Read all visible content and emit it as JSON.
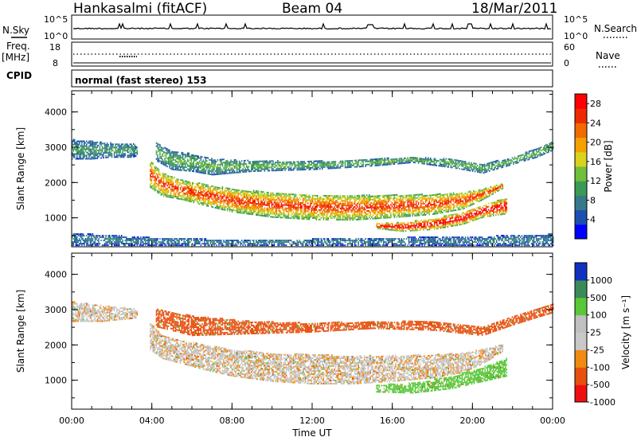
{
  "header": {
    "station": "Hankasalmi (fitACF)",
    "beam": "Beam 04",
    "date": "18/Mar/2011"
  },
  "top_panels": {
    "nsky_label": "N.Sky",
    "nsky_ticks": [
      "10^5",
      "10^0"
    ],
    "nsearch_label": "N.Search",
    "freq_label": "Freq.",
    "freq_unit": "[MHz]",
    "freq_ticks": [
      "18",
      "8"
    ],
    "nave_label": "Nave",
    "nave_ticks": [
      "60",
      "0"
    ],
    "cpid_label": "CPID",
    "cpid_text": "normal (fast stereo) 153"
  },
  "colors": {
    "power": [
      "#0000ff",
      "#1b4fb2",
      "#357a8a",
      "#3b9a55",
      "#6fbf3a",
      "#d9d21e",
      "#f5a000",
      "#f06a00",
      "#ee2a00",
      "#ff0000"
    ],
    "velocity": [
      "#1030c0",
      "#3a8a5a",
      "#58c838",
      "#c0c0c0",
      "#c8c8c8",
      "#f08a10",
      "#e85010",
      "#ee1010"
    ]
  },
  "chart_data": [
    {
      "type": "heatmap",
      "title": "",
      "panel": "power",
      "xlabel": "",
      "ylabel": "Slant Range [km]",
      "xlim": [
        0,
        24
      ],
      "ylim": [
        180,
        4600
      ],
      "x_ticks": [
        "00:00",
        "04:00",
        "08:00",
        "12:00",
        "16:00",
        "20:00",
        "00:00"
      ],
      "y_ticks": [
        1000,
        2000,
        3000,
        4000
      ],
      "colorbar_label": "Power [dB]",
      "colorbar_ticks": [
        "4",
        "8",
        "12",
        "16",
        "20",
        "24",
        "28"
      ],
      "colorbar_range": [
        0,
        30
      ],
      "echo_bands": [
        {
          "desc": "main E-region echo",
          "x": [
            3.9,
            4.5,
            5.5,
            6.5,
            8,
            10,
            12,
            14,
            16,
            18,
            19.5,
            20.5,
            21.5
          ],
          "lower": [
            1850,
            1600,
            1500,
            1350,
            1150,
            1000,
            930,
            920,
            990,
            1080,
            1230,
            1500,
            1820
          ],
          "upper": [
            2600,
            2250,
            2050,
            1950,
            1800,
            1700,
            1650,
            1620,
            1630,
            1650,
            1700,
            1800,
            1950
          ],
          "power": 22
        },
        {
          "desc": "upper F echo",
          "x": [
            4.2,
            5,
            6,
            7,
            9,
            12,
            15,
            17,
            19,
            20.5,
            22,
            23.2,
            24
          ],
          "lower": [
            2600,
            2350,
            2300,
            2200,
            2300,
            2350,
            2450,
            2550,
            2400,
            2250,
            2500,
            2700,
            2900
          ],
          "upper": [
            3100,
            2850,
            2800,
            2650,
            2600,
            2580,
            2650,
            2700,
            2650,
            2500,
            2700,
            2950,
            3150
          ],
          "power": 10
        },
        {
          "desc": "early F echo",
          "x": [
            0,
            1,
            2,
            3,
            3.3
          ],
          "lower": [
            2650,
            2650,
            2700,
            2700,
            2750
          ],
          "upper": [
            3200,
            3150,
            3100,
            3100,
            3000
          ],
          "power": 8
        },
        {
          "desc": "late lower echo",
          "x": [
            15.2,
            16.5,
            18,
            19.5,
            20.5,
            21.7
          ],
          "lower": [
            680,
            600,
            650,
            800,
            1000,
            1100
          ],
          "upper": [
            820,
            850,
            950,
            1150,
            1350,
            1550
          ],
          "power": 26
        },
        {
          "desc": "ground scatter",
          "x": [
            0,
            4,
            8,
            12,
            16,
            20,
            24
          ],
          "lower": [
            200,
            200,
            200,
            200,
            200,
            200,
            200
          ],
          "upper": [
            550,
            420,
            360,
            380,
            420,
            450,
            520
          ],
          "power": 6
        }
      ]
    },
    {
      "type": "heatmap",
      "title": "",
      "panel": "velocity",
      "xlabel": "Time UT",
      "ylabel": "Slant Range [km]",
      "xlim": [
        0,
        24
      ],
      "ylim": [
        180,
        4600
      ],
      "x_ticks": [
        "00:00",
        "04:00",
        "08:00",
        "12:00",
        "16:00",
        "20:00",
        "00:00"
      ],
      "y_ticks": [
        1000,
        2000,
        3000,
        4000
      ],
      "colorbar_label": "Velocity [m s⁻¹]",
      "colorbar_ticks": [
        "1000",
        "500",
        "100",
        "25",
        "-25",
        "-100",
        "-500",
        "-1000"
      ],
      "echo_bands": [
        {
          "desc": "main echo, near-zero velocity",
          "x": [
            3.9,
            4.5,
            5.5,
            6.5,
            8,
            10,
            12,
            14,
            16,
            18,
            19.5,
            20.5,
            21.5
          ],
          "lower": [
            1850,
            1600,
            1450,
            1300,
            1100,
            950,
            880,
            880,
            950,
            1050,
            1200,
            1450,
            1800
          ],
          "upper": [
            2600,
            2250,
            2100,
            2000,
            1850,
            1750,
            1700,
            1680,
            1680,
            1700,
            1750,
            1850,
            2000
          ],
          "velocity": 0
        },
        {
          "desc": "upper echo",
          "x": [
            4.2,
            6,
            9,
            12,
            15,
            18,
            20.5,
            22,
            24
          ],
          "lower": [
            2500,
            2250,
            2300,
            2350,
            2450,
            2400,
            2250,
            2550,
            2900
          ],
          "upper": [
            3000,
            2800,
            2650,
            2600,
            2650,
            2650,
            2500,
            2800,
            3150
          ],
          "velocity": -200
        },
        {
          "desc": "early echo",
          "x": [
            0,
            1.5,
            3.3
          ],
          "lower": [
            2650,
            2650,
            2750
          ],
          "upper": [
            3200,
            3100,
            3000
          ],
          "velocity": 0
        },
        {
          "desc": "late lower echo",
          "x": [
            15.2,
            17,
            19,
            20.5,
            21.7
          ],
          "lower": [
            650,
            620,
            750,
            950,
            1100
          ],
          "upper": [
            850,
            900,
            1100,
            1350,
            1600
          ],
          "velocity": 150
        }
      ]
    }
  ]
}
